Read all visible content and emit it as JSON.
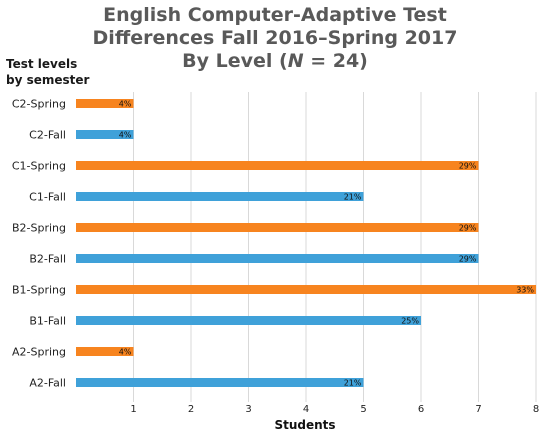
{
  "chart_data": {
    "type": "bar",
    "orientation": "horizontal",
    "title": {
      "line1": "English Computer-Adaptive Test",
      "line2": "Differences Fall 2016–Spring 2017",
      "line3_pre": "By Level (",
      "line3_n": "N",
      "line3_post": " = 24)"
    },
    "ylabel_lines": [
      "Test levels",
      "by semester"
    ],
    "xlabel": "Students",
    "xlim": [
      0,
      8
    ],
    "xticks": [
      "1",
      "2",
      "3",
      "4",
      "5",
      "6",
      "7",
      "8"
    ],
    "grid": "vertical",
    "colors": {
      "Spring": "#F7841F",
      "Fall": "#3FA1D9"
    },
    "categories": [
      "C2-Spring",
      "C2-Fall",
      "C1-Spring",
      "C1-Fall",
      "B2-Spring",
      "B2-Fall",
      "B1-Spring",
      "B1-Fall",
      "A2-Spring",
      "A2-Fall"
    ],
    "values": [
      1,
      1,
      7,
      5,
      7,
      7,
      8,
      6,
      1,
      5
    ],
    "data_labels": [
      "4%",
      "4%",
      "29%",
      "21%",
      "29%",
      "29%",
      "33%",
      "25%",
      "4%",
      "21%"
    ],
    "semester": [
      "Spring",
      "Fall",
      "Spring",
      "Fall",
      "Spring",
      "Fall",
      "Spring",
      "Fall",
      "Spring",
      "Fall"
    ]
  }
}
